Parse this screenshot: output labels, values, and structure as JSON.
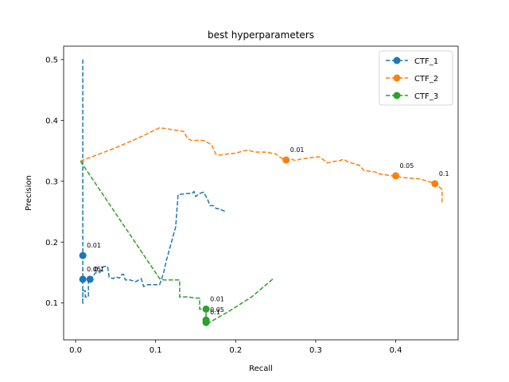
{
  "chart_data": {
    "type": "line",
    "title": "best hyperparameters",
    "xlabel": "Recall",
    "ylabel": "Precision",
    "xlim": [
      -0.015,
      0.478
    ],
    "ylim": [
      0.0395,
      0.522
    ],
    "xticks": [
      0.0,
      0.1,
      0.2,
      0.3,
      0.4
    ],
    "xtick_labels": [
      "0.0",
      "0.1",
      "0.2",
      "0.3",
      "0.4"
    ],
    "yticks": [
      0.1,
      0.2,
      0.3,
      0.4,
      0.5
    ],
    "ytick_labels": [
      "0.1",
      "0.2",
      "0.3",
      "0.4",
      "0.5"
    ],
    "legend_position": "top-right",
    "grid": false,
    "series": [
      {
        "name": "CTF_1",
        "color": "#1f77b4",
        "line": [
          [
            0.009,
            0.5
          ],
          [
            0.009,
            0.098
          ],
          [
            0.009,
            0.12
          ],
          [
            0.012,
            0.12
          ],
          [
            0.012,
            0.11
          ],
          [
            0.016,
            0.11
          ],
          [
            0.016,
            0.14
          ],
          [
            0.02,
            0.14
          ],
          [
            0.025,
            0.15
          ],
          [
            0.03,
            0.15
          ],
          [
            0.035,
            0.16
          ],
          [
            0.04,
            0.16
          ],
          [
            0.042,
            0.142
          ],
          [
            0.047,
            0.14
          ],
          [
            0.05,
            0.143
          ],
          [
            0.055,
            0.141
          ],
          [
            0.058,
            0.147
          ],
          [
            0.06,
            0.147
          ],
          [
            0.062,
            0.138
          ],
          [
            0.068,
            0.138
          ],
          [
            0.075,
            0.135
          ],
          [
            0.082,
            0.14
          ],
          [
            0.085,
            0.127
          ],
          [
            0.09,
            0.13
          ],
          [
            0.1,
            0.13
          ],
          [
            0.105,
            0.13
          ],
          [
            0.11,
            0.15
          ],
          [
            0.113,
            0.168
          ],
          [
            0.125,
            0.225
          ],
          [
            0.128,
            0.278
          ],
          [
            0.14,
            0.28
          ],
          [
            0.145,
            0.28
          ],
          [
            0.148,
            0.283
          ],
          [
            0.15,
            0.275
          ],
          [
            0.155,
            0.28
          ],
          [
            0.16,
            0.282
          ],
          [
            0.165,
            0.27
          ],
          [
            0.168,
            0.26
          ],
          [
            0.172,
            0.26
          ],
          [
            0.176,
            0.255
          ],
          [
            0.18,
            0.255
          ],
          [
            0.182,
            0.253
          ],
          [
            0.188,
            0.25
          ]
        ],
        "markers": [
          {
            "x": 0.009,
            "y": 0.178,
            "label": "0.01"
          },
          {
            "x": 0.009,
            "y": 0.139,
            "label": "0.05"
          },
          {
            "x": 0.018,
            "y": 0.139,
            "label": "0.1"
          }
        ]
      },
      {
        "name": "CTF_2",
        "color": "#ff7f0e",
        "line": [
          [
            0.006,
            0.333
          ],
          [
            0.02,
            0.34
          ],
          [
            0.05,
            0.355
          ],
          [
            0.08,
            0.372
          ],
          [
            0.105,
            0.388
          ],
          [
            0.12,
            0.385
          ],
          [
            0.135,
            0.382
          ],
          [
            0.14,
            0.37
          ],
          [
            0.145,
            0.367
          ],
          [
            0.16,
            0.367
          ],
          [
            0.17,
            0.36
          ],
          [
            0.175,
            0.345
          ],
          [
            0.18,
            0.343
          ],
          [
            0.19,
            0.345
          ],
          [
            0.2,
            0.346
          ],
          [
            0.21,
            0.35
          ],
          [
            0.215,
            0.351
          ],
          [
            0.225,
            0.348
          ],
          [
            0.24,
            0.348
          ],
          [
            0.245,
            0.346
          ],
          [
            0.25,
            0.345
          ],
          [
            0.255,
            0.34
          ],
          [
            0.26,
            0.336
          ],
          [
            0.27,
            0.336
          ],
          [
            0.275,
            0.334
          ],
          [
            0.28,
            0.336
          ],
          [
            0.29,
            0.338
          ],
          [
            0.3,
            0.34
          ],
          [
            0.305,
            0.34
          ],
          [
            0.31,
            0.335
          ],
          [
            0.315,
            0.33
          ],
          [
            0.32,
            0.332
          ],
          [
            0.33,
            0.334
          ],
          [
            0.335,
            0.336
          ],
          [
            0.34,
            0.332
          ],
          [
            0.345,
            0.33
          ],
          [
            0.35,
            0.328
          ],
          [
            0.355,
            0.326
          ],
          [
            0.36,
            0.318
          ],
          [
            0.37,
            0.316
          ],
          [
            0.375,
            0.315
          ],
          [
            0.38,
            0.312
          ],
          [
            0.39,
            0.31
          ],
          [
            0.4,
            0.308
          ],
          [
            0.41,
            0.306
          ],
          [
            0.42,
            0.305
          ],
          [
            0.43,
            0.304
          ],
          [
            0.44,
            0.3
          ],
          [
            0.45,
            0.296
          ],
          [
            0.455,
            0.29
          ],
          [
            0.458,
            0.286
          ],
          [
            0.458,
            0.263
          ]
        ],
        "markers": [
          {
            "x": 0.263,
            "y": 0.335,
            "label": "0.01"
          },
          {
            "x": 0.4,
            "y": 0.309,
            "label": "0.05"
          },
          {
            "x": 0.449,
            "y": 0.296,
            "label": "0.1"
          }
        ]
      },
      {
        "name": "CTF_3",
        "color": "#2ca02c",
        "line": [
          [
            0.006,
            0.333
          ],
          [
            0.105,
            0.14
          ],
          [
            0.11,
            0.138
          ],
          [
            0.13,
            0.138
          ],
          [
            0.13,
            0.11
          ],
          [
            0.14,
            0.11
          ],
          [
            0.15,
            0.108
          ],
          [
            0.155,
            0.108
          ],
          [
            0.155,
            0.09
          ],
          [
            0.163,
            0.09
          ],
          [
            0.163,
            0.065
          ],
          [
            0.19,
            0.085
          ],
          [
            0.22,
            0.11
          ],
          [
            0.247,
            0.14
          ]
        ],
        "markers": [
          {
            "x": 0.163,
            "y": 0.09,
            "label": "0.01"
          },
          {
            "x": 0.163,
            "y": 0.072,
            "label": "0.05"
          },
          {
            "x": 0.163,
            "y": 0.068,
            "label": "0.1"
          }
        ]
      }
    ]
  }
}
